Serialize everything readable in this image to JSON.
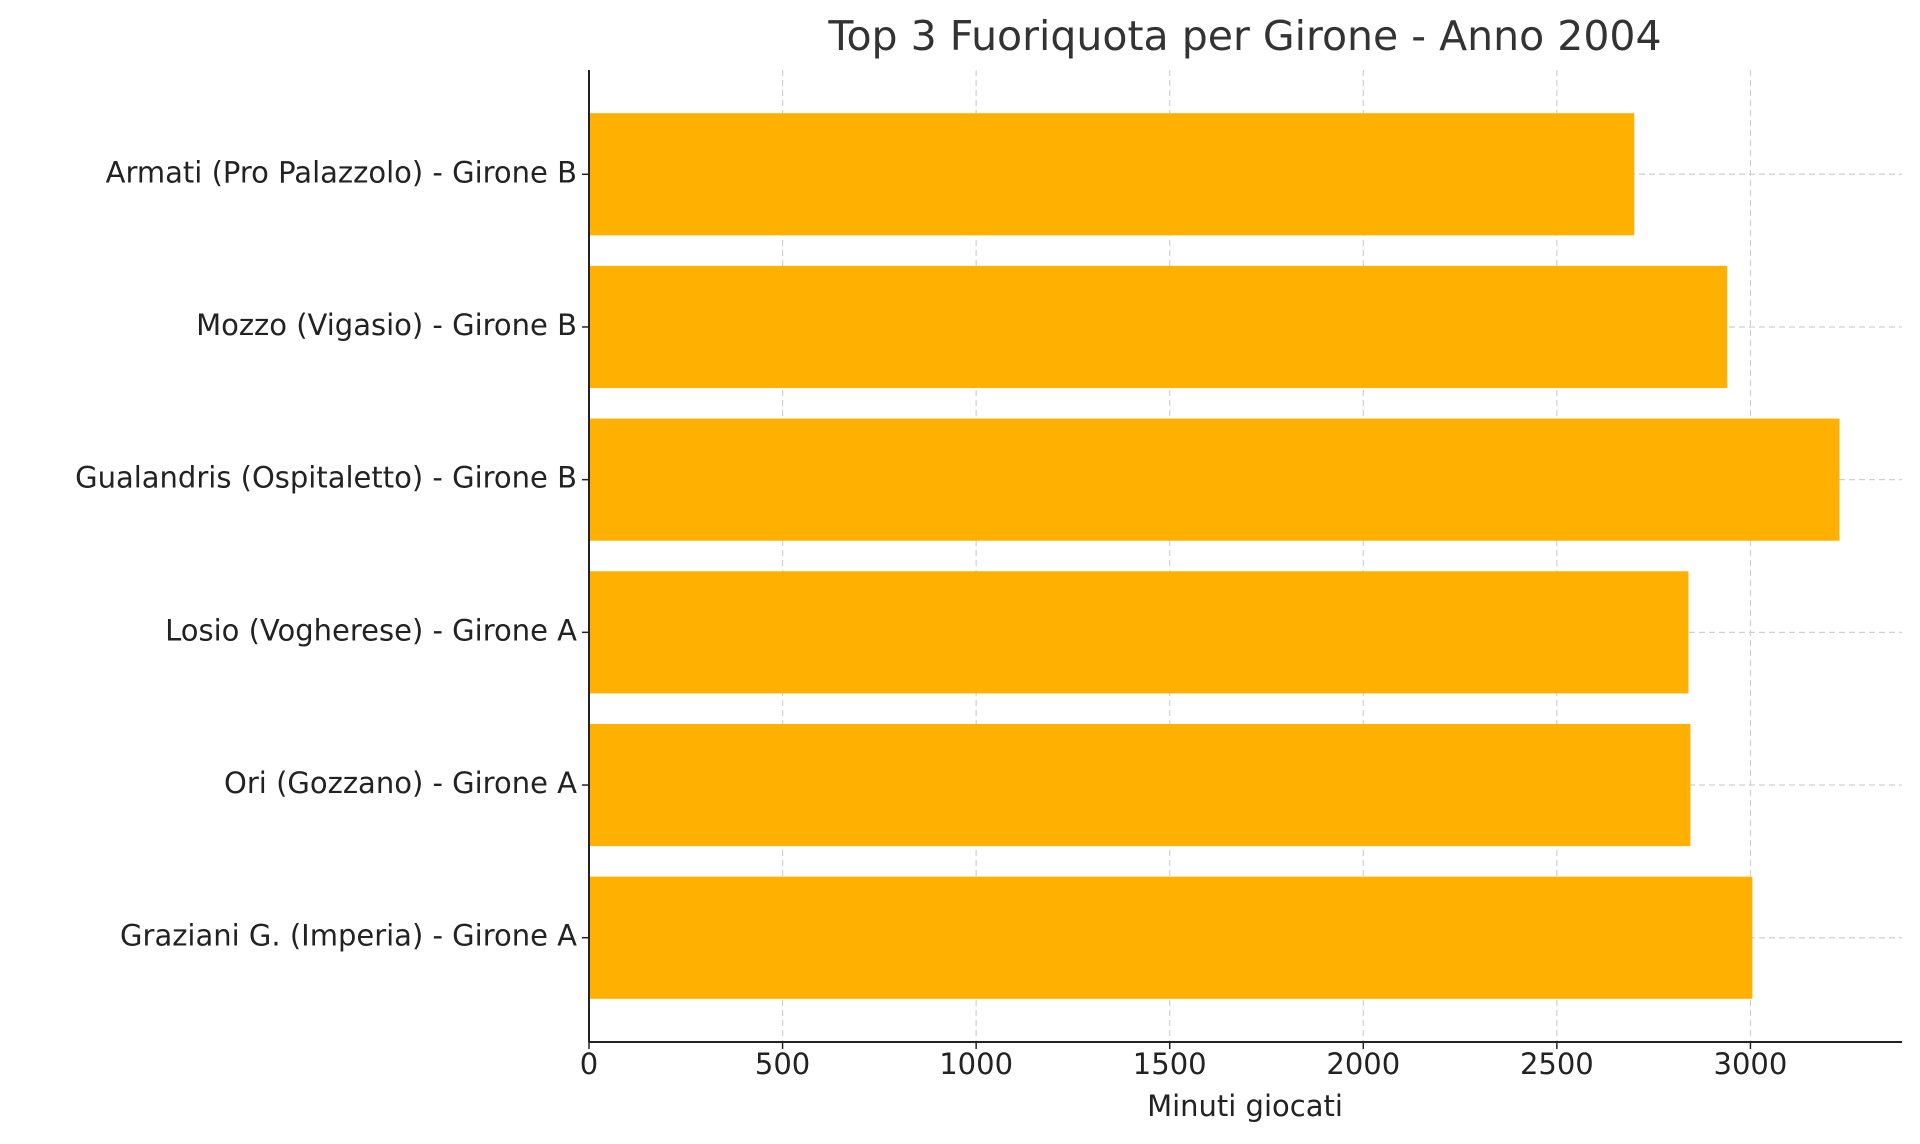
{
  "chart_data": {
    "type": "barh",
    "title": "Top 3 Fuoriquota per Girone - Anno 2004",
    "xlabel": "Minuti giocati",
    "categories": [
      "Armati (Pro Palazzolo) - Girone B",
      "Mozzo (Vigasio) - Girone B",
      "Gualandris (Ospitaletto) - Girone B",
      "Losio (Vogherese) - Girone A",
      "Ori (Gozzano) - Girone A",
      "Graziani G. (Imperia) - Girone A"
    ],
    "values": [
      2700,
      2940,
      3230,
      2840,
      2845,
      3005
    ],
    "color": "#ffb000",
    "xlim": [
      0,
      3391.5
    ],
    "xticks": [
      0,
      500,
      1000,
      1500,
      2000,
      2500,
      3000
    ],
    "grid": true
  }
}
